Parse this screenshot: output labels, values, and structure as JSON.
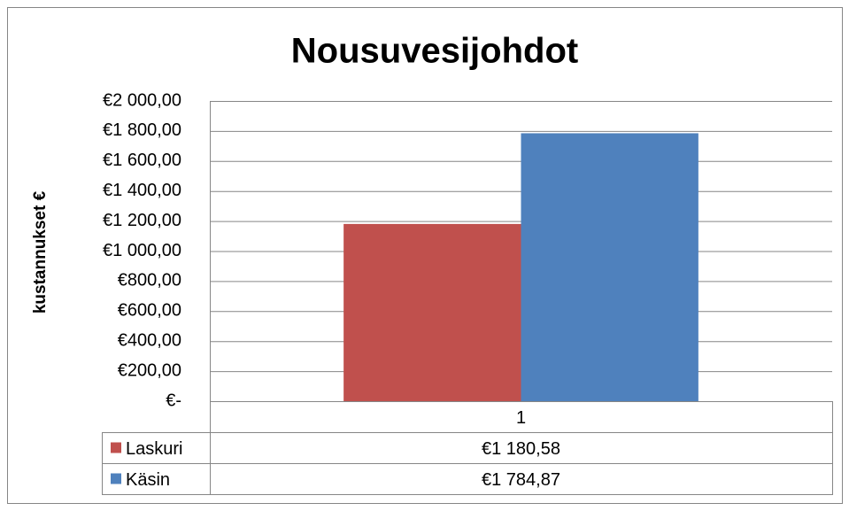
{
  "chart_data": {
    "type": "bar",
    "title": "Nousuvesijohdot",
    "y_label": "kustannukset €",
    "categories": [
      "1"
    ],
    "series": [
      {
        "name": "Laskuri",
        "color": "#c0504d",
        "values": [
          1180.58
        ],
        "value_labels": [
          "€1 180,58"
        ]
      },
      {
        "name": "Käsin",
        "color": "#4f81bd",
        "values": [
          1784.87
        ],
        "value_labels": [
          "€1 784,87"
        ]
      }
    ],
    "ylim": [
      0,
      2000
    ],
    "yticks": [
      {
        "value": 0,
        "label": "€-"
      },
      {
        "value": 200,
        "label": "€200,00"
      },
      {
        "value": 400,
        "label": "€400,00"
      },
      {
        "value": 600,
        "label": "€600,00"
      },
      {
        "value": 800,
        "label": "€800,00"
      },
      {
        "value": 1000,
        "label": "€1 000,00"
      },
      {
        "value": 1200,
        "label": "€1 200,00"
      },
      {
        "value": 1400,
        "label": "€1 400,00"
      },
      {
        "value": 1600,
        "label": "€1 600,00"
      },
      {
        "value": 1800,
        "label": "€1 800,00"
      },
      {
        "value": 2000,
        "label": "€2 000,00"
      }
    ],
    "grid": true
  }
}
